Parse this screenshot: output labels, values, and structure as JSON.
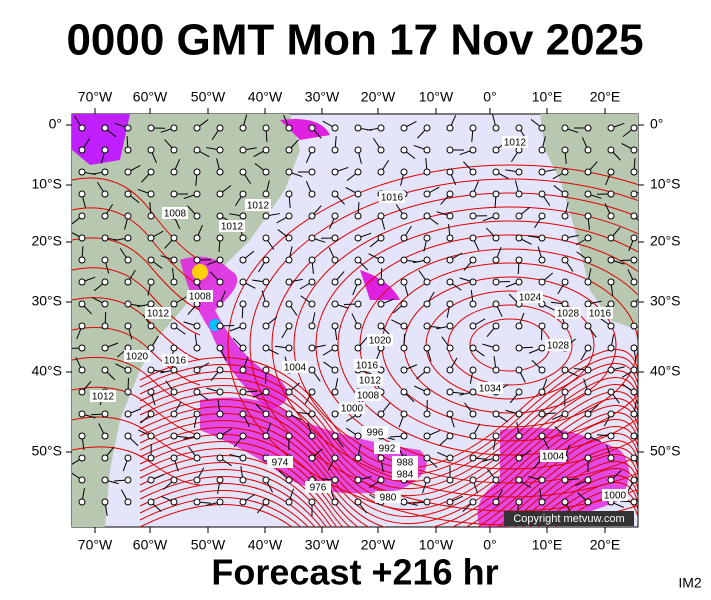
{
  "header": {
    "title": "0000 GMT Mon 17 Nov 2025"
  },
  "map": {
    "lon_labels": [
      "70°W",
      "60°W",
      "50°W",
      "40°W",
      "30°W",
      "20°W",
      "10°W",
      "0°",
      "10°E",
      "20°E"
    ],
    "lat_labels": [
      "0°",
      "10°S",
      "20°S",
      "30°S",
      "40°S",
      "50°S"
    ],
    "isobar_labels": [
      "1012",
      "1016",
      "1008",
      "1012",
      "1012",
      "1008",
      "1012",
      "1024",
      "1028",
      "1016",
      "1028",
      "1020",
      "1016",
      "1012",
      "1008",
      "1004",
      "1000",
      "1034",
      "996",
      "992",
      "988",
      "984",
      "976",
      "974",
      "980",
      "1004",
      "1000",
      "1012",
      "1020",
      "1016"
    ],
    "copyright": "Copyright metvuw.com"
  },
  "footer": {
    "forecast": "Forecast +216 hr",
    "code": "IM2"
  }
}
